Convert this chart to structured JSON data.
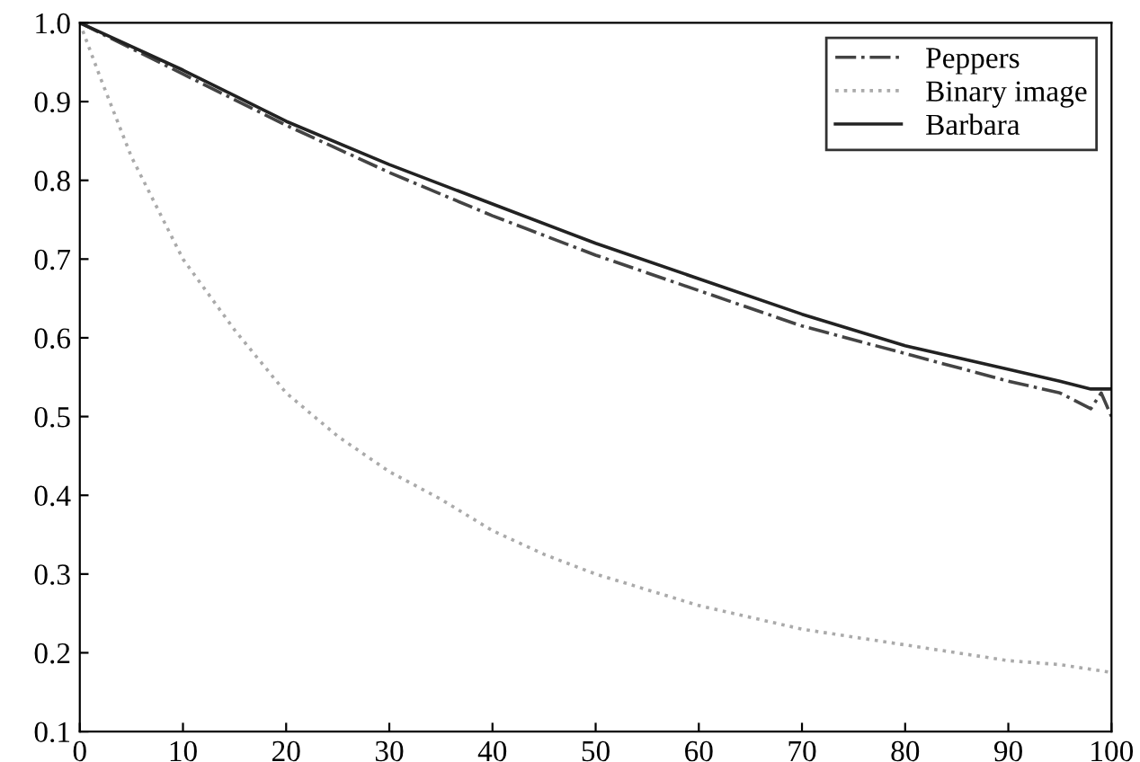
{
  "chart_data": {
    "type": "line",
    "xlim": [
      0,
      100
    ],
    "ylim": [
      0.1,
      1.0
    ],
    "xticks": [
      0,
      10,
      20,
      30,
      40,
      50,
      60,
      70,
      80,
      90,
      100
    ],
    "yticks": [
      {
        "value": 0.1,
        "label": "0.1"
      },
      {
        "value": 0.2,
        "label": "0.2"
      },
      {
        "value": 0.3,
        "label": "0.3"
      },
      {
        "value": 0.4,
        "label": "0.4"
      },
      {
        "value": 0.5,
        "label": "0.5"
      },
      {
        "value": 0.6,
        "label": "0.6"
      },
      {
        "value": 0.7,
        "label": "0.7"
      },
      {
        "value": 0.8,
        "label": "0.8"
      },
      {
        "value": 0.9,
        "label": "0.9"
      },
      {
        "value": 1.0,
        "label": "1.0"
      }
    ],
    "grid": false,
    "legend": "top right",
    "marker": "none",
    "series": [
      {
        "name": "Peppers",
        "color": "#444444",
        "line_style": "dashdot",
        "x": [
          0,
          10,
          20,
          30,
          40,
          50,
          60,
          70,
          80,
          90,
          95,
          98,
          99,
          100
        ],
        "values": [
          1.0,
          0.935,
          0.87,
          0.81,
          0.755,
          0.705,
          0.66,
          0.615,
          0.58,
          0.545,
          0.53,
          0.51,
          0.53,
          0.5
        ]
      },
      {
        "name": "Binary image",
        "color": "#aaaaaa",
        "line_style": "dotted",
        "x": [
          0,
          2,
          5,
          10,
          15,
          20,
          25,
          30,
          35,
          40,
          45,
          50,
          55,
          60,
          65,
          70,
          75,
          80,
          85,
          90,
          95,
          100
        ],
        "values": [
          1.0,
          0.93,
          0.83,
          0.7,
          0.61,
          0.53,
          0.475,
          0.43,
          0.395,
          0.355,
          0.325,
          0.3,
          0.28,
          0.26,
          0.245,
          0.23,
          0.22,
          0.21,
          0.2,
          0.19,
          0.185,
          0.175
        ]
      },
      {
        "name": "Barbara",
        "color": "#222222",
        "line_style": "solid",
        "x": [
          0,
          10,
          20,
          30,
          40,
          50,
          60,
          70,
          80,
          90,
          95,
          98,
          100
        ],
        "values": [
          1.0,
          0.94,
          0.875,
          0.82,
          0.77,
          0.72,
          0.675,
          0.63,
          0.59,
          0.56,
          0.545,
          0.535,
          0.535
        ]
      }
    ]
  }
}
